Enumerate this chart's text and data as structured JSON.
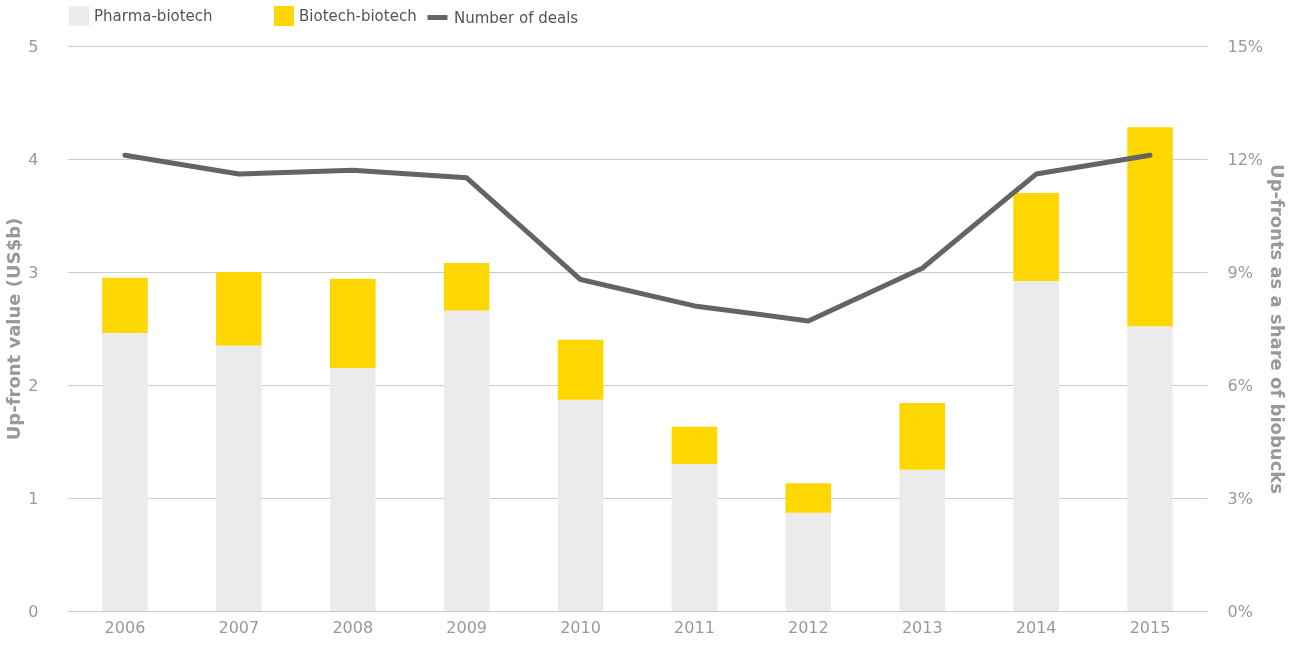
{
  "chart_data": {
    "type": "bar",
    "stacked": true,
    "ylabel": "Up-front value (US$b)",
    "y2label": "Up-fronts as a share of biobucks",
    "categories": [
      "2006",
      "2007",
      "2008",
      "2009",
      "2010",
      "2011",
      "2012",
      "2013",
      "2014",
      "2015"
    ],
    "series": [
      {
        "name": "Pharma-biotech",
        "color": "#ebebeb",
        "values": [
          2.46,
          2.35,
          2.15,
          2.66,
          1.87,
          1.3,
          0.87,
          1.25,
          2.92,
          2.52
        ]
      },
      {
        "name": "Biotech-biotech",
        "color": "#ffd700",
        "values": [
          0.49,
          0.65,
          0.79,
          0.42,
          0.53,
          0.33,
          0.26,
          0.59,
          0.78,
          1.76
        ]
      },
      {
        "name": "Number of deals",
        "type": "line",
        "axis": "y2",
        "color": "#646464",
        "values": [
          12.1,
          11.6,
          11.7,
          11.5,
          8.8,
          8.1,
          7.7,
          9.1,
          11.6,
          12.1
        ]
      }
    ],
    "ylim": [
      0,
      5
    ],
    "yticks": [
      0,
      1,
      2,
      3,
      4,
      5
    ],
    "y2lim": [
      0,
      15
    ],
    "y2ticks": [
      {
        "value": 0,
        "label": "0%"
      },
      {
        "value": 3,
        "label": "3%"
      },
      {
        "value": 6,
        "label": "6%"
      },
      {
        "value": 9,
        "label": "9%"
      },
      {
        "value": 12,
        "label": "12%"
      },
      {
        "value": 15,
        "label": "15%"
      }
    ],
    "grid": "y",
    "legend": "top left"
  }
}
